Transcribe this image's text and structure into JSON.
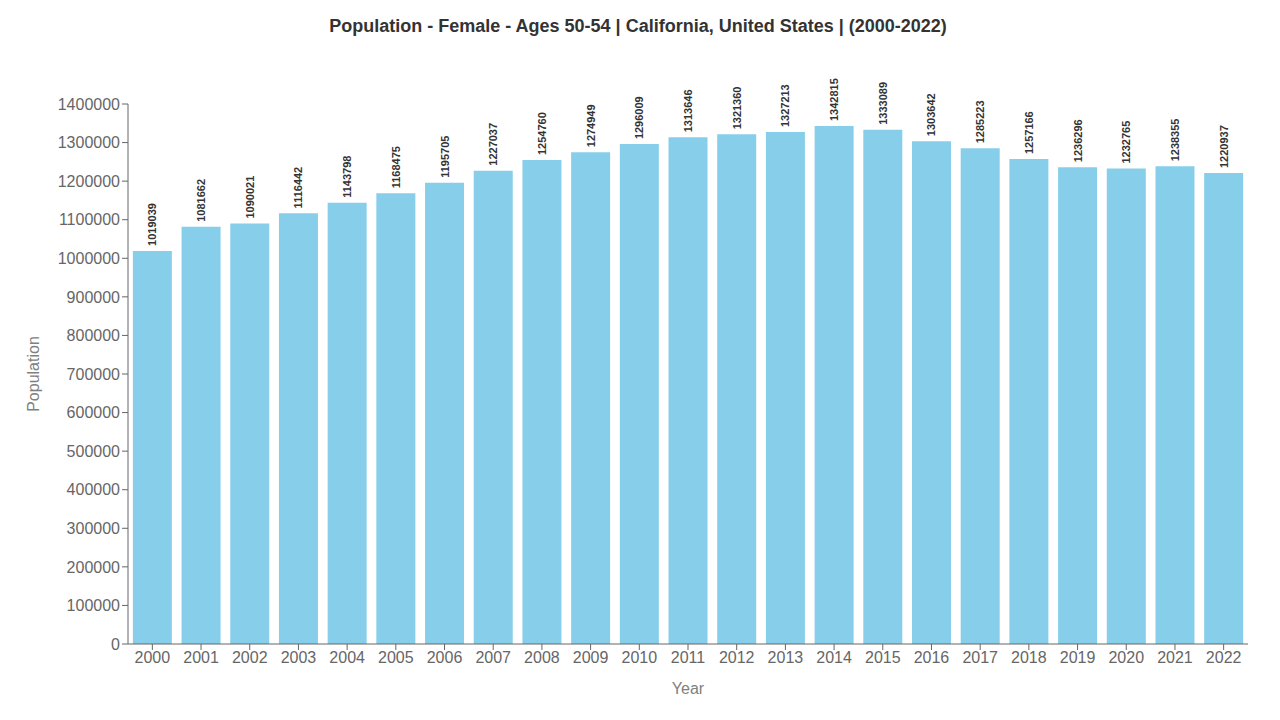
{
  "chart_data": {
    "type": "bar",
    "title": "Population - Female - Ages 50-54 | California, United States |  (2000-2022)",
    "xlabel": "Year",
    "ylabel": "Population",
    "categories": [
      "2000",
      "2001",
      "2002",
      "2003",
      "2004",
      "2005",
      "2006",
      "2007",
      "2008",
      "2009",
      "2010",
      "2011",
      "2012",
      "2013",
      "2014",
      "2015",
      "2016",
      "2017",
      "2018",
      "2019",
      "2020",
      "2021",
      "2022"
    ],
    "values": [
      1019039,
      1081662,
      1090021,
      1116442,
      1143798,
      1168475,
      1195705,
      1227037,
      1254760,
      1274949,
      1296009,
      1313646,
      1321360,
      1327213,
      1342815,
      1333089,
      1303642,
      1285223,
      1257166,
      1236296,
      1232765,
      1238355,
      1220937
    ],
    "color": "#87CEEB",
    "ylim": [
      0,
      1400000
    ],
    "yticks": [
      0,
      100000,
      200000,
      300000,
      400000,
      500000,
      600000,
      700000,
      800000,
      900000,
      1000000,
      1100000,
      1200000,
      1300000,
      1400000
    ],
    "grid": false,
    "data_labels": true
  }
}
